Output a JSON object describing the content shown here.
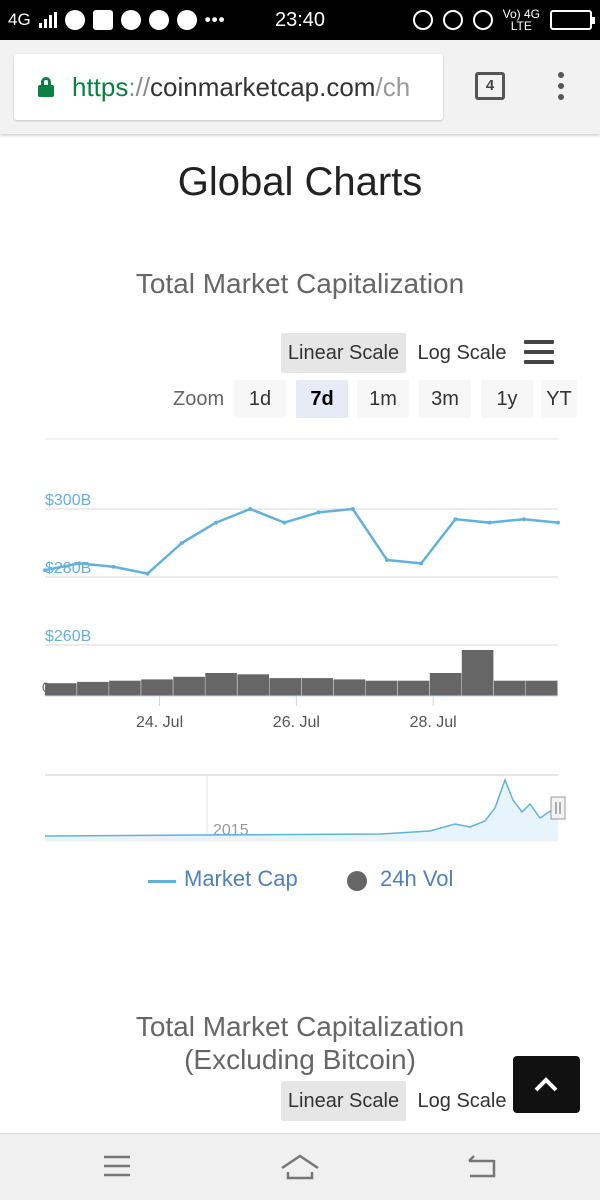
{
  "status_bar": {
    "network": "4G",
    "time": "23:40",
    "lte_label": "Vo) 4G",
    "lte_sub": "LTE",
    "icons": [
      "signal-icon",
      "telegram-icon",
      "mail-icon",
      "chat-icon",
      "twitter-icon",
      "call-icon",
      "more-icon",
      "data-saver-icon",
      "mute-icon",
      "alarm-icon",
      "battery-icon"
    ]
  },
  "browser": {
    "url_scheme": "https",
    "url_sep": "://",
    "url_host": "coinmarketcap.com",
    "url_path": "/ch",
    "tab_count": "4"
  },
  "page": {
    "title": "Global Charts"
  },
  "chart1": {
    "title": "Total Market Capitalization",
    "scale_linear": "Linear Scale",
    "scale_log": "Log Scale",
    "zoom_label": "Zoom",
    "zoom_options": [
      "1d",
      "7d",
      "1m",
      "3m",
      "1y",
      "YT"
    ],
    "zoom_selected": "7d",
    "legend_market_cap": "Market Cap",
    "legend_volume": "24h Vol",
    "navigator_label": "2015",
    "colors": {
      "market_cap": "#62b1dd",
      "volume": "#666666",
      "legend_text": "#4f81bd"
    }
  },
  "chart_data": {
    "type": "line",
    "title": "Total Market Capitalization",
    "y_tick_labels": [
      "$300B",
      "$280B",
      "$260B"
    ],
    "volume_axis_zero": "0",
    "x_tick_labels": [
      "24. Jul",
      "26. Jul",
      "28. Jul"
    ],
    "y_range": [
      260,
      310
    ],
    "series": [
      {
        "name": "Market Cap",
        "x": [
          "Jul 22 12:00",
          "Jul 23 00:00",
          "Jul 23 12:00",
          "Jul 24 00:00",
          "Jul 24 12:00",
          "Jul 25 00:00",
          "Jul 25 12:00",
          "Jul 26 00:00",
          "Jul 26 12:00",
          "Jul 27 00:00",
          "Jul 27 12:00",
          "Jul 28 00:00",
          "Jul 28 12:00",
          "Jul 29 00:00",
          "Jul 29 12:00",
          "Jul 30 00:00"
        ],
        "values": [
          282,
          284,
          283,
          281,
          290,
          296,
          300,
          296,
          299,
          300,
          285,
          284,
          297,
          296,
          297,
          296
        ]
      },
      {
        "name": "24h Vol",
        "x": [
          "Jul 22 12:00",
          "Jul 23 00:00",
          "Jul 23 12:00",
          "Jul 24 00:00",
          "Jul 24 12:00",
          "Jul 25 00:00",
          "Jul 25 12:00",
          "Jul 26 00:00",
          "Jul 26 12:00",
          "Jul 27 00:00",
          "Jul 27 12:00",
          "Jul 28 00:00",
          "Jul 28 12:00",
          "Jul 29 00:00",
          "Jul 29 12:00",
          "Jul 30 00:00"
        ],
        "values": [
          0.5,
          0.55,
          0.6,
          0.65,
          0.75,
          0.9,
          0.85,
          0.7,
          0.7,
          0.65,
          0.6,
          0.6,
          0.9,
          1.8,
          0.6,
          0.6
        ]
      }
    ],
    "grid": true,
    "legend_position": "bottom"
  },
  "chart2": {
    "title_line1": "Total Market Capitalization",
    "title_line2": "(Excluding Bitcoin)",
    "scale_linear": "Linear Scale",
    "scale_log": "Log Scale"
  },
  "nav": {
    "icons": [
      "menu-icon",
      "home-icon",
      "back-icon"
    ]
  }
}
